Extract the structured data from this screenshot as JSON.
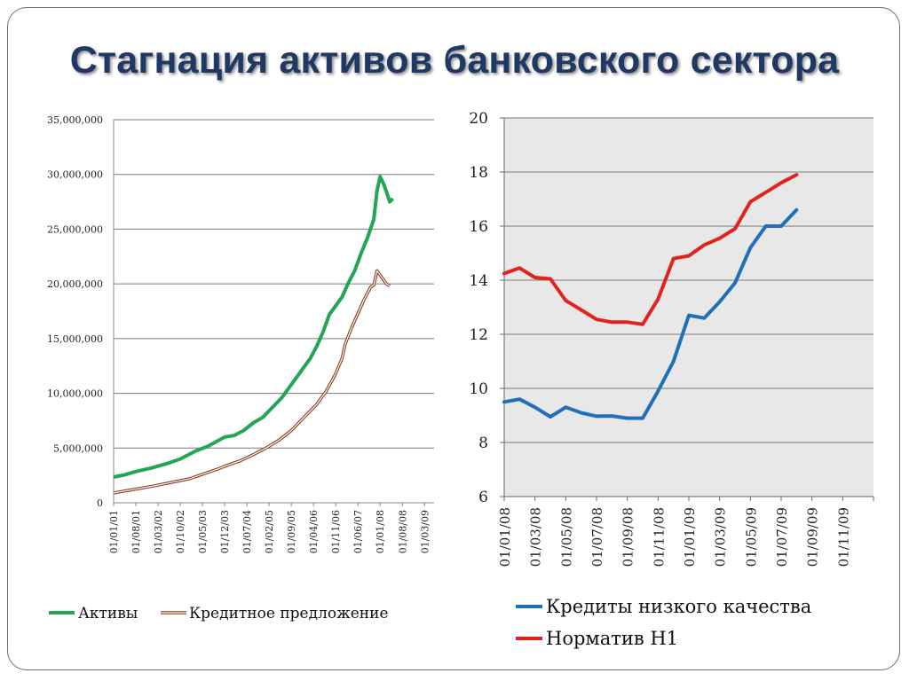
{
  "title": "Стагнация активов банковского сектора",
  "chart_data": [
    {
      "type": "line",
      "ylim": [
        0,
        35000000
      ],
      "ytick_labels": [
        "0",
        "5,000,000",
        "10,000,000",
        "15,000,000",
        "20,000,000",
        "25,000,000",
        "30,000,000",
        "35,000,000"
      ],
      "yticks": [
        0,
        5000000,
        10000000,
        15000000,
        20000000,
        25000000,
        30000000,
        35000000
      ],
      "xlim": [
        0,
        101
      ],
      "x_tick_labels": [
        "01/01/01",
        "01/08/01",
        "01/03/02",
        "01/10/02",
        "01/05/03",
        "01/12/03",
        "01/07/04",
        "01/02/05",
        "01/09/05",
        "01/04/06",
        "01/11/06",
        "01/06/07",
        "01/01/08",
        "01/08/08",
        "01/03/09"
      ],
      "x_tick_step_months": 7,
      "grid": true,
      "legend_position": "bottom",
      "series": [
        {
          "name": "Активы",
          "color": "#22a653",
          "style": "solid",
          "points": [
            [
              0,
              2350000
            ],
            [
              3,
              2520000
            ],
            [
              7,
              2850000
            ],
            [
              12,
              3180000
            ],
            [
              17,
              3600000
            ],
            [
              21,
              4000000
            ],
            [
              26,
              4750000
            ],
            [
              30,
              5200000
            ],
            [
              35,
              6000000
            ],
            [
              38,
              6150000
            ],
            [
              41,
              6600000
            ],
            [
              44,
              7300000
            ],
            [
              47,
              7800000
            ],
            [
              50,
              8700000
            ],
            [
              53,
              9600000
            ],
            [
              56,
              10800000
            ],
            [
              59,
              12000000
            ],
            [
              62,
              13200000
            ],
            [
              64,
              14300000
            ],
            [
              66,
              15600000
            ],
            [
              68,
              17200000
            ],
            [
              70,
              18000000
            ],
            [
              72,
              18800000
            ],
            [
              74,
              20100000
            ],
            [
              76,
              21200000
            ],
            [
              78,
              22800000
            ],
            [
              80,
              24200000
            ],
            [
              82,
              25900000
            ],
            [
              83,
              28500000
            ],
            [
              84,
              29800000
            ],
            [
              85,
              29200000
            ],
            [
              86,
              28400000
            ],
            [
              87,
              27500000
            ],
            [
              88,
              27800000
            ]
          ]
        },
        {
          "name": "Кредитное предложение",
          "color": "#8b3a1e",
          "style": "double",
          "points": [
            [
              0,
              900000
            ],
            [
              6,
              1200000
            ],
            [
              12,
              1500000
            ],
            [
              18,
              1850000
            ],
            [
              24,
              2200000
            ],
            [
              27,
              2500000
            ],
            [
              30,
              2800000
            ],
            [
              33,
              3100000
            ],
            [
              36,
              3450000
            ],
            [
              40,
              3850000
            ],
            [
              44,
              4400000
            ],
            [
              48,
              5000000
            ],
            [
              52,
              5700000
            ],
            [
              56,
              6600000
            ],
            [
              60,
              7800000
            ],
            [
              64,
              9000000
            ],
            [
              67,
              10200000
            ],
            [
              70,
              11800000
            ],
            [
              72,
              13200000
            ],
            [
              73,
              14500000
            ],
            [
              75,
              16000000
            ],
            [
              77,
              17300000
            ],
            [
              79,
              18600000
            ],
            [
              81,
              19700000
            ],
            [
              82,
              19900000
            ],
            [
              83,
              21200000
            ],
            [
              84,
              20800000
            ],
            [
              85,
              20400000
            ],
            [
              86,
              20000000
            ],
            [
              87,
              19800000
            ]
          ]
        }
      ]
    },
    {
      "type": "line",
      "ylim": [
        6,
        20
      ],
      "ytick_labels": [
        "6",
        "8",
        "10",
        "12",
        "14",
        "16",
        "18",
        "20"
      ],
      "yticks": [
        6,
        8,
        10,
        12,
        14,
        16,
        18,
        20
      ],
      "xlim": [
        0,
        24
      ],
      "x_tick_labels": [
        "01/01/08",
        "01/03/08",
        "01/05/08",
        "01/07/08",
        "01/09/08",
        "01/11/08",
        "01/01/09",
        "01/03/09",
        "01/05/09",
        "01/07/09",
        "01/09/09",
        "01/11/09"
      ],
      "x_tick_step_months": 2,
      "background": "#e8e8e8",
      "grid": true,
      "legend_position": "bottom",
      "series": [
        {
          "name": "Кредиты низкого качества",
          "color": "#1f6fba",
          "points": [
            [
              0,
              9.5
            ],
            [
              1,
              9.6
            ],
            [
              2,
              9.3
            ],
            [
              3,
              8.95
            ],
            [
              4,
              9.3
            ],
            [
              5,
              9.1
            ],
            [
              6,
              8.97
            ],
            [
              7,
              8.98
            ],
            [
              8,
              8.9
            ],
            [
              9,
              8.9
            ],
            [
              10,
              9.9
            ],
            [
              11,
              11.0
            ],
            [
              12,
              12.7
            ],
            [
              13,
              12.6
            ],
            [
              14,
              13.2
            ],
            [
              15,
              13.9
            ],
            [
              16,
              15.2
            ],
            [
              17,
              16.0
            ],
            [
              18,
              16.0
            ],
            [
              19,
              16.6
            ]
          ]
        },
        {
          "name": "Норматив Н1",
          "color": "#e0231d",
          "points": [
            [
              0,
              14.25
            ],
            [
              1,
              14.45
            ],
            [
              2,
              14.1
            ],
            [
              3,
              14.05
            ],
            [
              4,
              13.25
            ],
            [
              5,
              12.9
            ],
            [
              6,
              12.55
            ],
            [
              7,
              12.45
            ],
            [
              8,
              12.45
            ],
            [
              9,
              12.37
            ],
            [
              10,
              13.3
            ],
            [
              11,
              14.8
            ],
            [
              12,
              14.9
            ],
            [
              13,
              15.3
            ],
            [
              14,
              15.55
            ],
            [
              15,
              15.9
            ],
            [
              16,
              16.9
            ],
            [
              17,
              17.25
            ],
            [
              18,
              17.6
            ],
            [
              19,
              17.9
            ]
          ]
        }
      ]
    }
  ]
}
